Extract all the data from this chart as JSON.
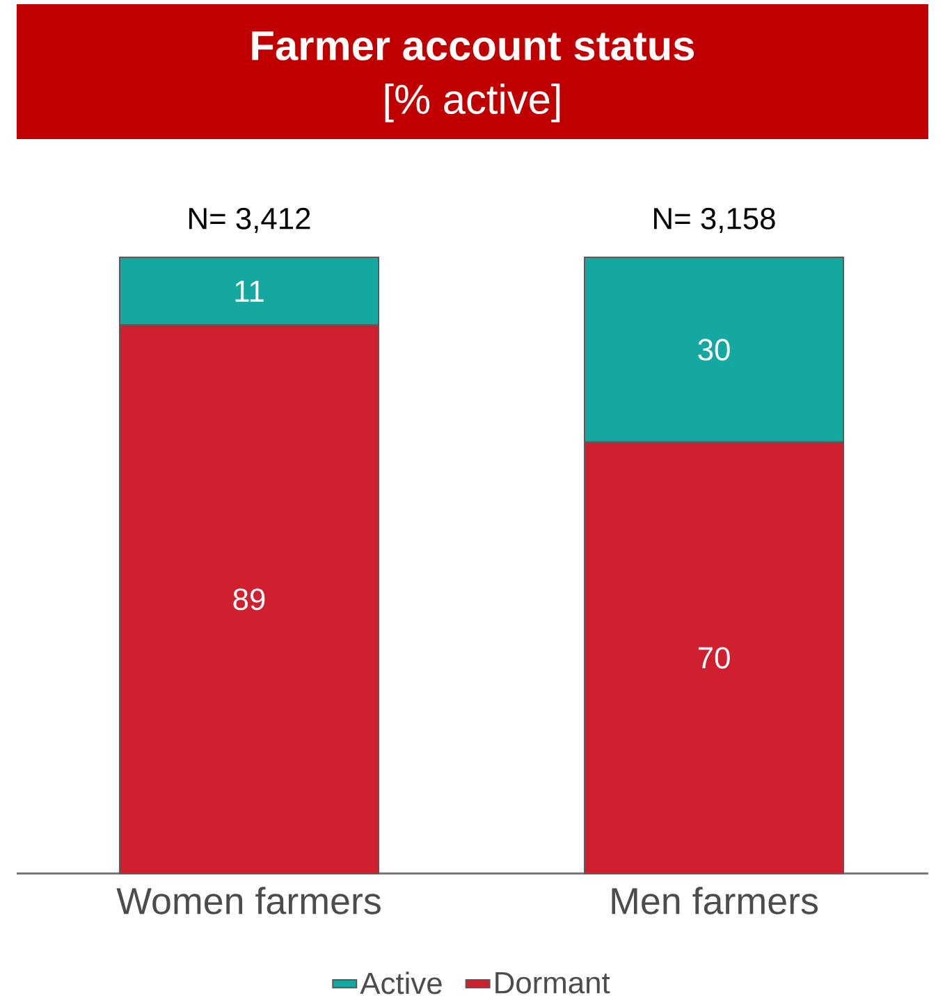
{
  "chart_data": {
    "type": "bar",
    "title": "Farmer account status",
    "subtitle": "[% active]",
    "categories": [
      "Women farmers",
      "Men farmers"
    ],
    "series": [
      {
        "name": "Dormant",
        "color": "#d01f2e",
        "values": [
          89,
          70
        ]
      },
      {
        "name": "Active",
        "color": "#14a8a0",
        "values": [
          11,
          30
        ]
      }
    ],
    "annotations": [
      {
        "text": "N= 3,412",
        "x": "Women farmers",
        "y": 100
      },
      {
        "text": "N= 3,158",
        "x": "Men farmers",
        "y": 100
      }
    ],
    "stacked": true,
    "data_labels": true,
    "legend": "bottom"
  }
}
